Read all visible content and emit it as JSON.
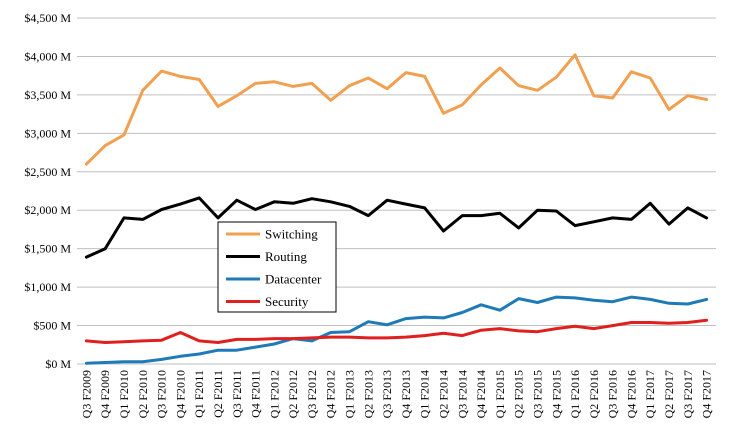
{
  "chart_data": {
    "type": "line",
    "title": "",
    "xlabel": "",
    "ylabel": "",
    "ylim": [
      0,
      4500
    ],
    "y_ticks": [
      {
        "value": 0,
        "label": "$0 M"
      },
      {
        "value": 500,
        "label": "$500 M"
      },
      {
        "value": 1000,
        "label": "$1,000 M"
      },
      {
        "value": 1500,
        "label": "$1,500 M"
      },
      {
        "value": 2000,
        "label": "$2,000 M"
      },
      {
        "value": 2500,
        "label": "$2,500 M"
      },
      {
        "value": 3000,
        "label": "$3,000 M"
      },
      {
        "value": 3500,
        "label": "$3,500 M"
      },
      {
        "value": 4000,
        "label": "$4,000 M"
      },
      {
        "value": 4500,
        "label": "$4,500 M"
      }
    ],
    "grid": "horizontal",
    "legend_position": "center-left",
    "categories": [
      "Q3 F2009",
      "Q4 F2009",
      "Q1 F2010",
      "Q2 F2010",
      "Q3 F2010",
      "Q4 F2010",
      "Q1 F2011",
      "Q2 F2011",
      "Q3 F2011",
      "Q4 F2011",
      "Q1 F2012",
      "Q2 F2012",
      "Q3 F2012",
      "Q4 F2012",
      "Q1 F2013",
      "Q2 F2013",
      "Q3 F2013",
      "Q4 F2013",
      "Q1 F2014",
      "Q2 F2014",
      "Q3 F2014",
      "Q4 F2014",
      "Q1 F2015",
      "Q2 F2015",
      "Q3 F2015",
      "Q4 F2015",
      "Q1 F2016",
      "Q2 F2016",
      "Q3 F2016",
      "Q4 F2016",
      "Q1 F2017",
      "Q2 F2017",
      "Q3 F2017",
      "Q4 F2017"
    ],
    "series": [
      {
        "name": "Switching",
        "color": "#f0a050",
        "values": [
          2600,
          2840,
          2980,
          3560,
          3810,
          3740,
          3700,
          3350,
          3490,
          3650,
          3670,
          3610,
          3650,
          3430,
          3620,
          3720,
          3580,
          3790,
          3740,
          3260,
          3370,
          3630,
          3850,
          3620,
          3560,
          3730,
          4020,
          3490,
          3460,
          3800,
          3720,
          3310,
          3490,
          3440
        ]
      },
      {
        "name": "Routing",
        "color": "#000000",
        "values": [
          1390,
          1500,
          1900,
          1880,
          2010,
          2080,
          2160,
          1900,
          2130,
          2010,
          2110,
          2090,
          2150,
          2110,
          2050,
          1930,
          2130,
          2080,
          2030,
          1730,
          1930,
          1930,
          1960,
          1770,
          2000,
          1990,
          1800,
          1850,
          1900,
          1880,
          2090,
          1820,
          2030,
          1900
        ]
      },
      {
        "name": "Datacenter",
        "color": "#1f7ab8",
        "values": [
          10,
          20,
          30,
          30,
          60,
          100,
          130,
          180,
          180,
          220,
          260,
          330,
          300,
          410,
          420,
          550,
          510,
          590,
          610,
          600,
          670,
          770,
          700,
          850,
          800,
          870,
          860,
          830,
          810,
          870,
          840,
          790,
          780,
          840
        ]
      },
      {
        "name": "Security",
        "color": "#e0201e",
        "values": [
          300,
          280,
          290,
          300,
          310,
          410,
          300,
          280,
          320,
          320,
          330,
          330,
          340,
          350,
          350,
          340,
          340,
          350,
          370,
          400,
          370,
          440,
          460,
          430,
          420,
          460,
          490,
          460,
          500,
          540,
          540,
          530,
          540,
          570
        ]
      }
    ]
  }
}
